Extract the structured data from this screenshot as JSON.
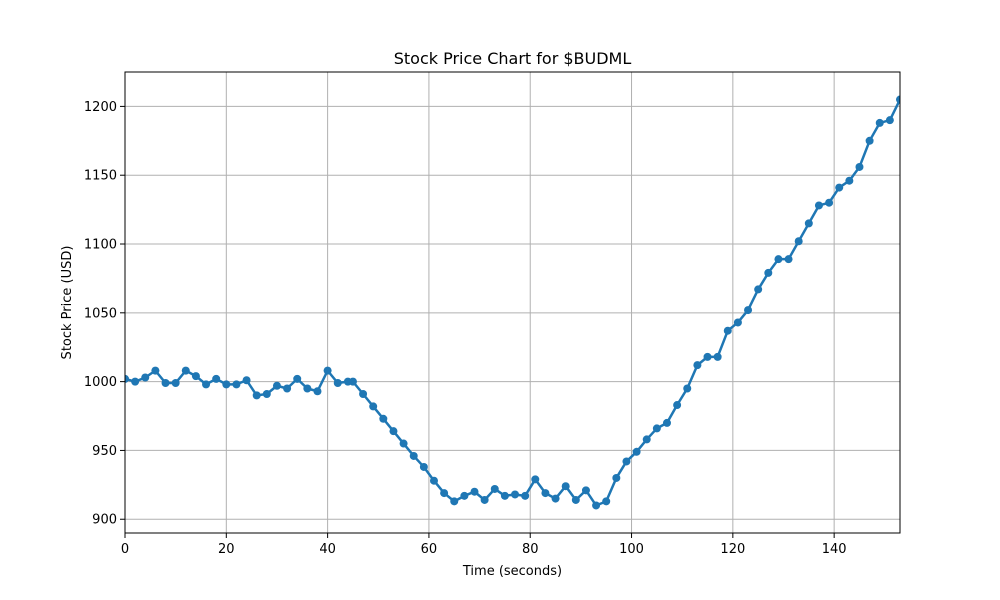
{
  "chart_data": {
    "type": "line",
    "title": "Stock Price Chart for $BUDML",
    "xlabel": "Time (seconds)",
    "ylabel": "Stock Price (USD)",
    "xlim": [
      0,
      153
    ],
    "ylim": [
      890,
      1225
    ],
    "x_ticks": [
      0,
      20,
      40,
      60,
      80,
      100,
      120,
      140
    ],
    "y_ticks": [
      900,
      950,
      1000,
      1050,
      1100,
      1150,
      1200
    ],
    "grid": true,
    "color": "#1f77b4",
    "series": [
      {
        "x": [
          0,
          2,
          4,
          6,
          8,
          10,
          12,
          14,
          16,
          18,
          20,
          22,
          24,
          26,
          28,
          30,
          32,
          34,
          36,
          38,
          40,
          42,
          44,
          45,
          47,
          49,
          51,
          53,
          55,
          57,
          59,
          61,
          63,
          65,
          67,
          69,
          71,
          73,
          75,
          77,
          79,
          81,
          83,
          85,
          87,
          89,
          91,
          93,
          95,
          97,
          99,
          101,
          103,
          105,
          107,
          109,
          111,
          113,
          115,
          117,
          119,
          121,
          123,
          125,
          127,
          129,
          131,
          133,
          135,
          137,
          139,
          141,
          143,
          145,
          147,
          149,
          151,
          153
        ],
        "y": [
          1002,
          1000,
          1003,
          1008,
          999,
          999,
          1008,
          1004,
          998,
          1002,
          998,
          998,
          1001,
          990,
          991,
          997,
          995,
          1002,
          995,
          993,
          1008,
          999,
          1000,
          1000,
          991,
          982,
          973,
          964,
          955,
          946,
          938,
          928,
          919,
          913,
          917,
          920,
          914,
          922,
          917,
          918,
          917,
          929,
          919,
          915,
          924,
          914,
          921,
          910,
          913,
          930,
          942,
          949,
          958,
          966,
          970,
          983,
          995,
          1012,
          1018,
          1018,
          1037,
          1043,
          1052,
          1067,
          1079,
          1089,
          1089,
          1102,
          1115,
          1128,
          1130,
          1141,
          1146,
          1156,
          1175,
          1188,
          1190,
          1205
        ]
      }
    ]
  }
}
